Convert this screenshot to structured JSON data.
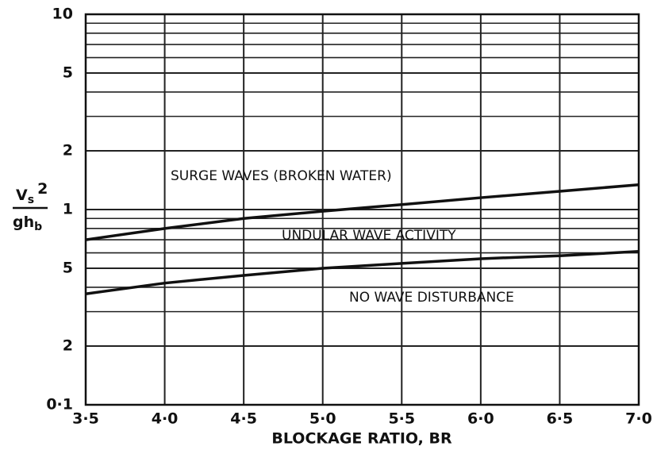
{
  "chart_data": {
    "type": "line",
    "xlabel": "BLOCKAGE RATIO, BR",
    "ylabel": {
      "numerator_base": "V",
      "numerator_sub": "s",
      "numerator_sup": "2",
      "denominator_base": "gh",
      "denominator_sub": "b"
    },
    "annotations": [
      "SURGE WAVES (BROKEN WATER)",
      "UNDULAR WAVE ACTIVITY",
      "NO WAVE DISTURBANCE"
    ],
    "x": [
      3.5,
      4.0,
      4.5,
      5.0,
      5.5,
      6.0,
      6.5,
      7.0
    ],
    "series": [
      {
        "color": "#111111",
        "values": [
          0.7,
          0.8,
          0.9,
          0.98,
          1.06,
          1.15,
          1.24,
          1.34
        ]
      },
      {
        "color": "#111111",
        "values": [
          0.37,
          0.42,
          0.46,
          0.5,
          0.53,
          0.56,
          0.58,
          0.61
        ]
      }
    ],
    "xlim": [
      3.5,
      7.0
    ],
    "xticks": [
      {
        "value": 3.5,
        "label": "3·5"
      },
      {
        "value": 4.0,
        "label": "4·0"
      },
      {
        "value": 4.5,
        "label": "4·5"
      },
      {
        "value": 5.0,
        "label": "5·0"
      },
      {
        "value": 5.5,
        "label": "5·5"
      },
      {
        "value": 6.0,
        "label": "6·0"
      },
      {
        "value": 6.5,
        "label": "6·5"
      },
      {
        "value": 7.0,
        "label": "7·0"
      }
    ],
    "ylim": [
      0.1,
      10
    ],
    "yscale": "log",
    "yticks": [
      {
        "value": 0.1,
        "label": "0·1"
      },
      {
        "value": 0.2,
        "label": "2"
      },
      {
        "value": 0.5,
        "label": "5"
      },
      1,
      2,
      5,
      10
    ],
    "y_minor_ticks": [
      0.3,
      0.4,
      0.6,
      0.7,
      0.8,
      0.9,
      3,
      4,
      6,
      7,
      8,
      9
    ],
    "grid": true
  }
}
